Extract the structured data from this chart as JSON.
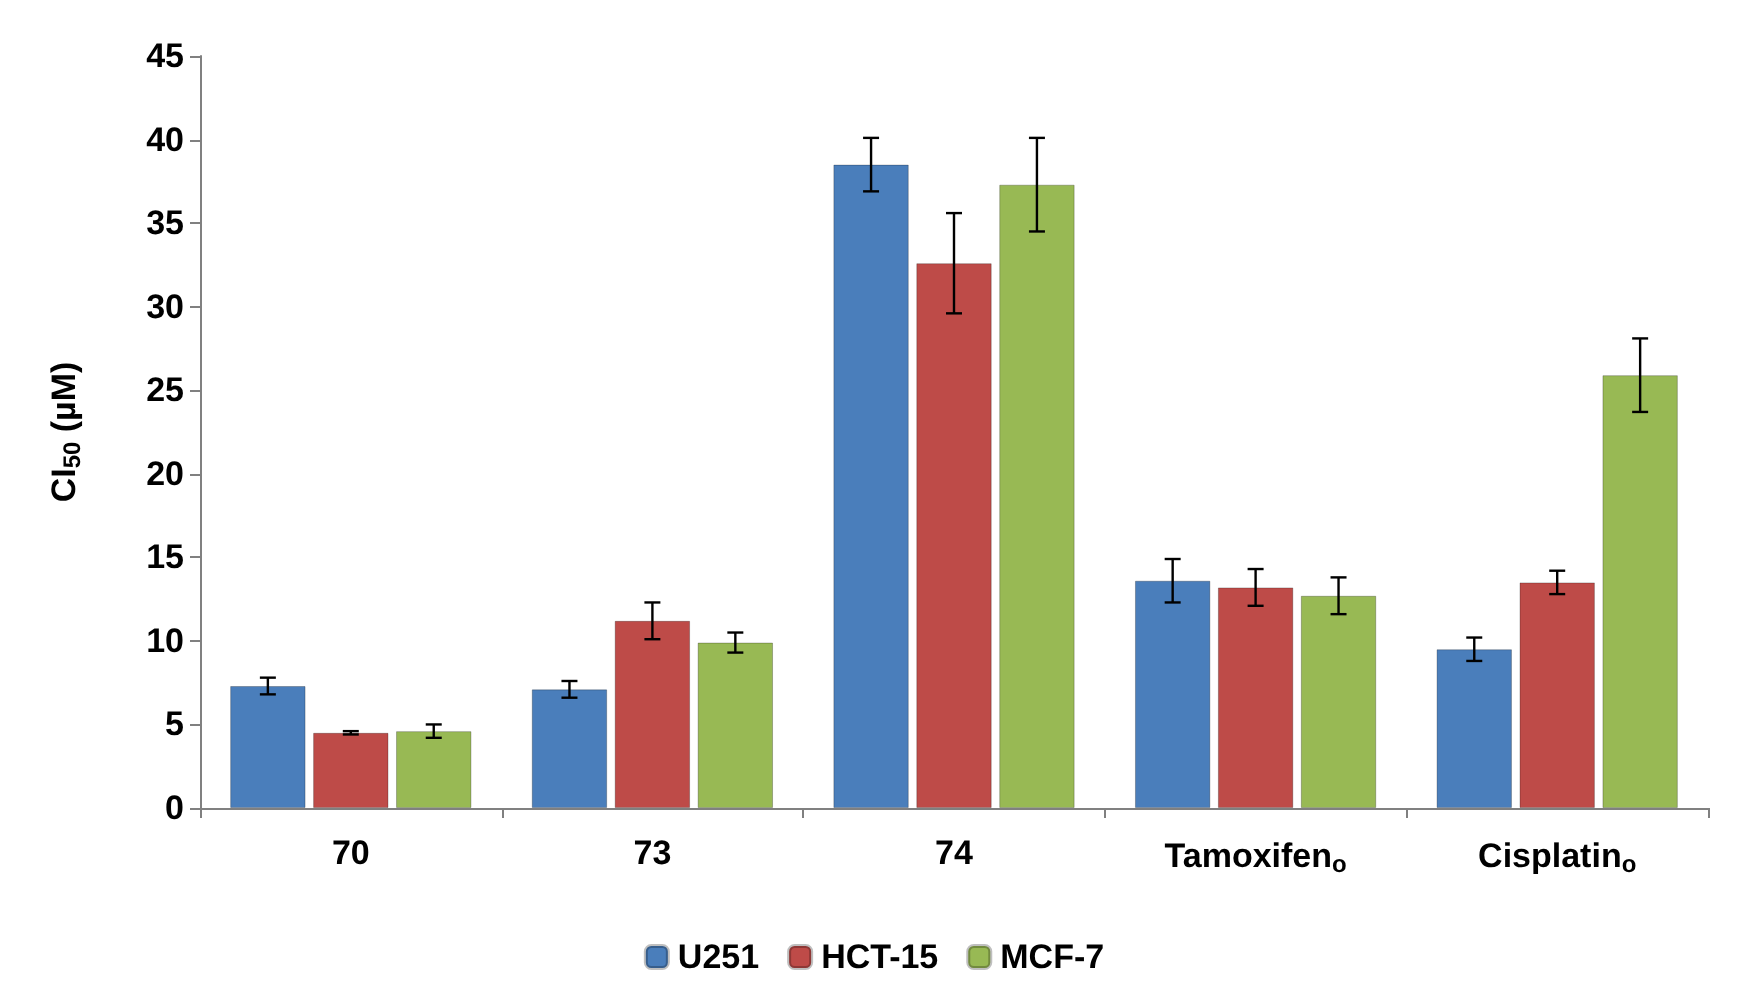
{
  "chart_data": {
    "type": "bar",
    "ylabel": "CI$_{50}$ (µM)",
    "categories": [
      "70",
      "73",
      "74",
      "Tamoxifen$_{o}$",
      "Cisplatin$_{o}$"
    ],
    "series": [
      {
        "name": "U251",
        "color": "#4a7ebb",
        "values": [
          7.3,
          7.1,
          38.5,
          13.6,
          9.5
        ],
        "errors": [
          0.5,
          0.5,
          1.6,
          1.3,
          0.7
        ]
      },
      {
        "name": "HCT-15",
        "color": "#be4b48",
        "values": [
          4.5,
          11.2,
          32.6,
          13.2,
          13.5
        ],
        "errors": [
          0.1,
          1.1,
          3.0,
          1.1,
          0.7
        ]
      },
      {
        "name": "MCF-7",
        "color": "#98b954",
        "values": [
          4.6,
          9.9,
          37.3,
          12.7,
          25.9
        ],
        "errors": [
          0.4,
          0.6,
          2.8,
          1.1,
          2.2
        ]
      }
    ],
    "ylim": [
      0,
      45
    ],
    "yticks": [
      0,
      5,
      10,
      15,
      20,
      25,
      30,
      35,
      40,
      45
    ],
    "grid": false,
    "legend": "bottom"
  }
}
